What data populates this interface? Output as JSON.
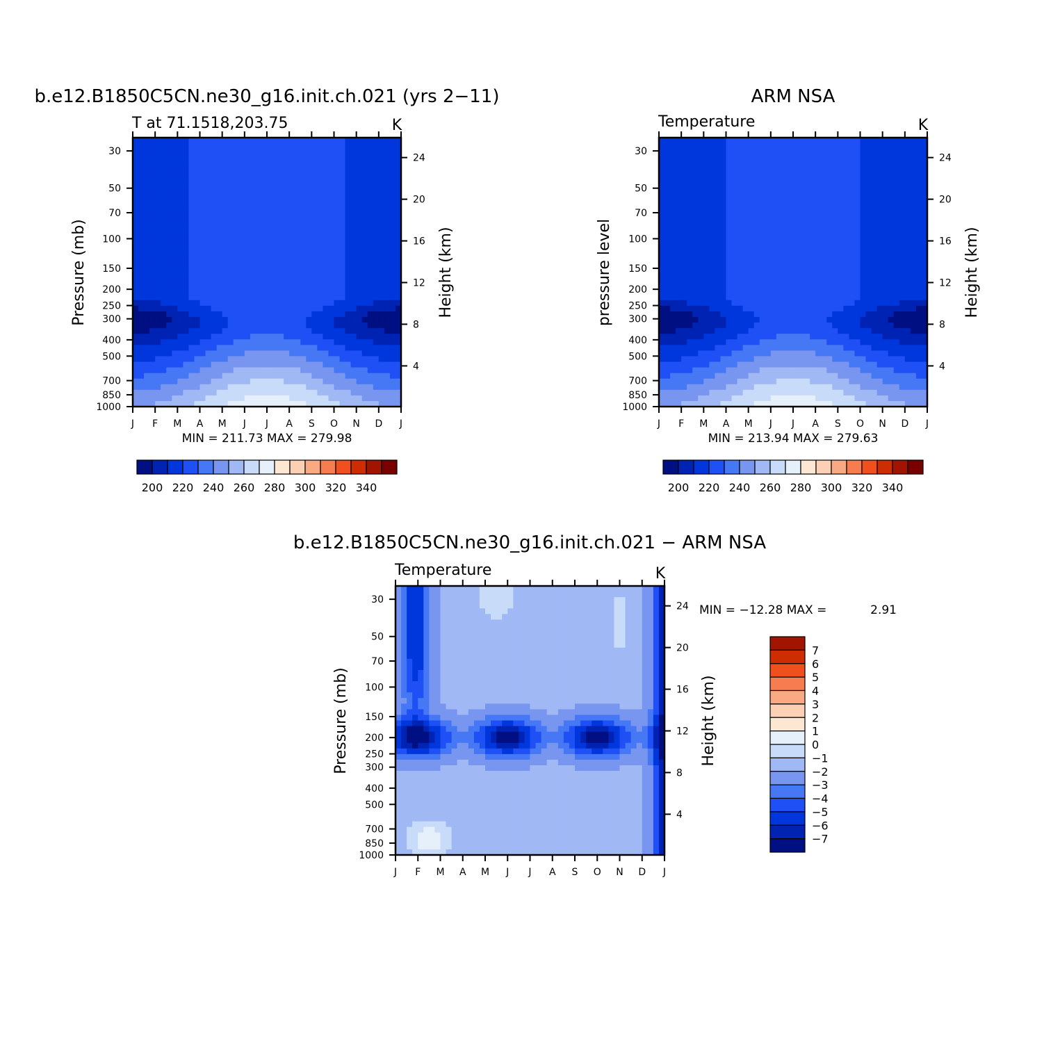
{
  "colors": {
    "levels": [
      "#000f82",
      "#0023b4",
      "#0037dc",
      "#1e50f5",
      "#4678f5",
      "#7896f0",
      "#a0b9f5",
      "#c8dcfa",
      "#e6f0fa",
      "#fde6d2",
      "#fcd0b4",
      "#faaa82",
      "#f77d50",
      "#f0501e",
      "#cd2d00",
      "#a01400",
      "#780000"
    ],
    "axis": "#000000"
  },
  "chart_data": [
    {
      "type": "heatmap",
      "id": "model",
      "title": "b.e12.B1850C5CN.ne30_g16.init.ch.021 (yrs 2−11)",
      "subtitle": "T at 71.1518,203.75",
      "units": "K",
      "ylabel": "Pressure (mb)",
      "y2label": "Height (km)",
      "x_ticks": [
        "J",
        "F",
        "M",
        "A",
        "M",
        "J",
        "J",
        "A",
        "S",
        "O",
        "N",
        "D",
        "J"
      ],
      "y_ticks": [
        30,
        50,
        70,
        100,
        150,
        200,
        250,
        300,
        400,
        500,
        700,
        850,
        1000
      ],
      "y2_ticks": [
        24,
        20,
        16,
        12,
        8,
        4
      ],
      "stats": "MIN = 211.73 MAX = 279.98",
      "min": 211.73,
      "max": 279.98,
      "colorbar_labels": [
        "200",
        "220",
        "240",
        "260",
        "280",
        "300",
        "320",
        "340"
      ],
      "contour_levels": [
        190,
        200,
        210,
        220,
        230,
        240,
        250,
        260,
        270,
        280,
        290,
        300,
        310,
        320,
        330,
        340,
        350
      ]
    },
    {
      "type": "heatmap",
      "id": "obs",
      "title": "ARM NSA",
      "subtitle": "Temperature",
      "units": "K",
      "ylabel": "pressure level",
      "y2label": "Height (km)",
      "x_ticks": [
        "J",
        "F",
        "M",
        "A",
        "M",
        "J",
        "J",
        "A",
        "S",
        "O",
        "N",
        "D",
        "J"
      ],
      "y_ticks": [
        30,
        50,
        70,
        100,
        150,
        200,
        250,
        300,
        400,
        500,
        700,
        850,
        1000
      ],
      "y2_ticks": [
        24,
        20,
        16,
        12,
        8,
        4
      ],
      "stats": "MIN = 213.94 MAX = 279.63",
      "min": 213.94,
      "max": 279.63,
      "colorbar_labels": [
        "200",
        "220",
        "240",
        "260",
        "280",
        "300",
        "320",
        "340"
      ],
      "contour_levels": [
        190,
        200,
        210,
        220,
        230,
        240,
        250,
        260,
        270,
        280,
        290,
        300,
        310,
        320,
        330,
        340,
        350
      ]
    },
    {
      "type": "heatmap",
      "id": "diff",
      "title": "b.e12.B1850C5CN.ne30_g16.init.ch.021 − ARM NSA",
      "subtitle": "Temperature",
      "units": "K",
      "ylabel": "Pressure (mb)",
      "y2label": "Height (km)",
      "x_ticks": [
        "J",
        "F",
        "M",
        "A",
        "M",
        "J",
        "J",
        "A",
        "S",
        "O",
        "N",
        "D",
        "J"
      ],
      "y_ticks": [
        30,
        50,
        70,
        100,
        150,
        200,
        250,
        300,
        400,
        500,
        700,
        850,
        1000
      ],
      "y2_ticks": [
        24,
        20,
        16,
        12,
        8,
        4
      ],
      "stats_label": "MIN = −12.28 MAX =",
      "stats_max": "2.91",
      "min": -12.28,
      "max": 2.91,
      "colorbar_labels": [
        "7",
        "6",
        "5",
        "4",
        "3",
        "2",
        "1",
        "0",
        "−1",
        "−2",
        "−3",
        "−4",
        "−5",
        "−6",
        "−7"
      ],
      "contour_levels": [
        -7,
        -6,
        -5,
        -4,
        -3,
        -2,
        -1,
        0,
        1,
        2,
        3,
        4,
        5,
        6,
        7
      ]
    }
  ]
}
